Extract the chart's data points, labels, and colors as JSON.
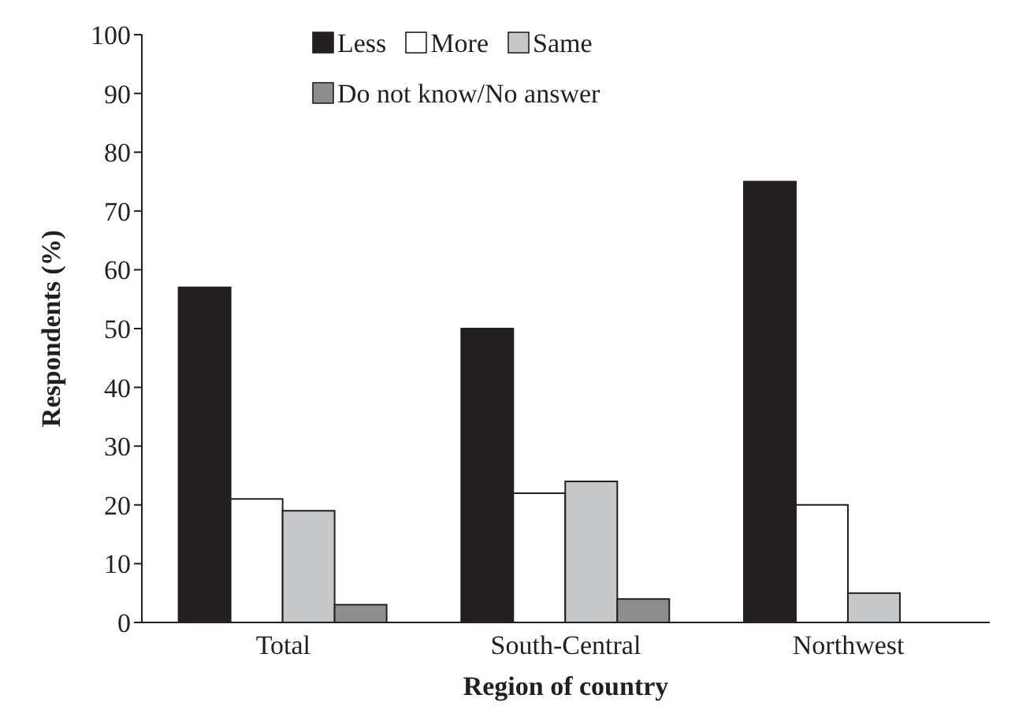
{
  "chart_data": {
    "type": "bar",
    "xlabel": "Region of country",
    "ylabel": "Respondents (%)",
    "categories": [
      "Total",
      "South-Central",
      "Northwest"
    ],
    "series": [
      {
        "name": "Less",
        "color": "#231f20",
        "values": [
          57,
          50,
          75
        ]
      },
      {
        "name": "More",
        "color": "#ffffff",
        "values": [
          21,
          22,
          20
        ]
      },
      {
        "name": "Same",
        "color": "#c6c7c9",
        "values": [
          19,
          24,
          5
        ]
      },
      {
        "name": "Do not know/No answer",
        "color": "#8f8e8f",
        "values": [
          3,
          4,
          null
        ]
      }
    ],
    "ylim": [
      0,
      100
    ],
    "yticks": [
      0,
      10,
      20,
      30,
      40,
      50,
      60,
      70,
      80,
      90,
      100
    ],
    "grid": false,
    "legend": "top"
  }
}
